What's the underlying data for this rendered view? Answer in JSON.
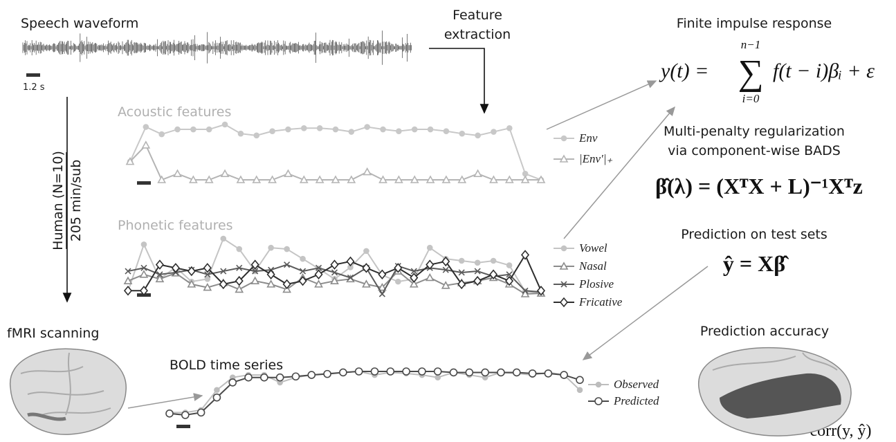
{
  "speech": {
    "title": "Speech waveform",
    "scale_label": "1.2 s"
  },
  "feature_extraction": [
    "Feature",
    "extraction"
  ],
  "human": [
    "Human (N=10)",
    "205 min/sub"
  ],
  "fir": {
    "title": "Finite impulse response",
    "lhs": "y(t) =",
    "sum": "∑",
    "upper": "n−1",
    "lower": "i=0",
    "rhs": "f(t − i)βᵢ + ε"
  },
  "regularization": {
    "title": [
      "Multi-penalty regularization",
      "via component-wise BADS"
    ],
    "equation": "β̂(λ) = (XᵀX + L)⁻¹Xᵀz"
  },
  "prediction": {
    "title": "Prediction on test sets",
    "equation": "ŷ = Xβ̂"
  },
  "fmri": {
    "title": "fMRI scanning"
  },
  "accuracy": {
    "title": "Prediction accuracy",
    "equation": "corr(y, ŷ)"
  },
  "charts": [
    {
      "title": "Acoustic features",
      "series": [
        {
          "name": "Env",
          "marker": "circle",
          "color": "#c8c8c8",
          "values": [
            35,
            92,
            80,
            88,
            88,
            88,
            96,
            81,
            78,
            85,
            88,
            90,
            90,
            88,
            84,
            92,
            88,
            85,
            88,
            88,
            85,
            81,
            78,
            84,
            90,
            15,
            5
          ]
        },
        {
          "name": "|Env′|₊",
          "marker": "triangle",
          "color": "#b4b4b4",
          "values": [
            35,
            62,
            5,
            15,
            5,
            5,
            15,
            5,
            5,
            5,
            15,
            5,
            5,
            5,
            5,
            18,
            5,
            5,
            5,
            5,
            5,
            5,
            15,
            5,
            5,
            5,
            5
          ]
        }
      ]
    },
    {
      "title": "Phonetic features",
      "series": [
        {
          "name": "Vowel",
          "marker": "circle",
          "color": "#c4c4c4",
          "values": [
            19,
            91,
            38,
            56,
            34,
            38,
            100,
            84,
            50,
            86,
            84,
            69,
            54,
            38,
            56,
            81,
            44,
            34,
            38,
            86,
            69,
            66,
            63,
            66,
            59,
            19,
            16
          ]
        },
        {
          "name": "Nasal",
          "marker": "triangle",
          "color": "#8c8c8c",
          "values": [
            35,
            45,
            38,
            47,
            30,
            25,
            32,
            22,
            35,
            30,
            22,
            40,
            30,
            35,
            38,
            30,
            25,
            50,
            30,
            40,
            28,
            32,
            35,
            40,
            30,
            15,
            16
          ]
        },
        {
          "name": "Plosive",
          "marker": "x",
          "color": "#5a5a5a",
          "values": [
            50,
            55,
            45,
            48,
            52,
            45,
            50,
            55,
            50,
            52,
            60,
            50,
            55,
            48,
            40,
            55,
            15,
            58,
            50,
            55,
            52,
            48,
            50,
            42,
            45,
            20,
            18
          ]
        },
        {
          "name": "Fricative",
          "marker": "diamond",
          "color": "#2e2e2e",
          "values": [
            20,
            20,
            60,
            55,
            50,
            55,
            30,
            35,
            60,
            45,
            30,
            35,
            45,
            60,
            65,
            55,
            45,
            55,
            40,
            60,
            65,
            30,
            35,
            45,
            35,
            75,
            20
          ]
        }
      ]
    },
    {
      "title": "BOLD time series",
      "series": [
        {
          "name": "Observed",
          "marker": "circle",
          "color": "#bdbdbd",
          "values": [
            10,
            10,
            15,
            55,
            80,
            85,
            85,
            70,
            80,
            85,
            88,
            90,
            92,
            85,
            90,
            88,
            85,
            80,
            90,
            85,
            80,
            90,
            88,
            85,
            90,
            85,
            55
          ]
        },
        {
          "name": "Predicted",
          "marker": "ring",
          "color": "#4a4a4a",
          "values": [
            8,
            5,
            10,
            40,
            70,
            80,
            80,
            80,
            82,
            85,
            87,
            90,
            92,
            92,
            92,
            92,
            92,
            92,
            90,
            90,
            90,
            90,
            90,
            88,
            88,
            85,
            75
          ]
        }
      ]
    }
  ]
}
